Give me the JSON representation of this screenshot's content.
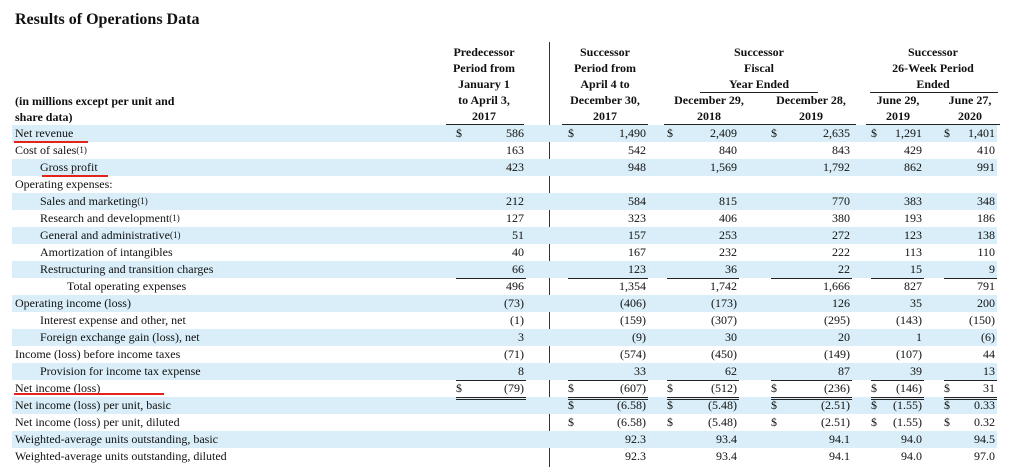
{
  "title": "Results of Operations Data",
  "unit_label": [
    "(in millions except per unit and",
    "share data)"
  ],
  "columns": [
    {
      "group": [
        "Predecessor",
        "Period from",
        "January 1",
        "to April 3,",
        "2017"
      ]
    },
    {
      "group": [
        "Successor",
        "Period from",
        "April 4 to",
        "December 30,",
        "2017"
      ]
    },
    {
      "group_top": [
        "Successor",
        "Fiscal",
        "Year Ended"
      ],
      "sub": [
        [
          "December 29,",
          "2018"
        ],
        [
          "December 28,",
          "2019"
        ]
      ]
    },
    {
      "group_top": [
        "Successor",
        "26-Week Period",
        "Ended"
      ],
      "sub": [
        [
          "June 29,",
          "2019"
        ],
        [
          "June 27,",
          "2020"
        ]
      ]
    }
  ],
  "rows": [
    {
      "label": "Net revenue",
      "indent": 0,
      "shade": true,
      "dollar": true,
      "values": [
        "586",
        "1,490",
        "2,409",
        "2,635",
        "1,291",
        "1,401"
      ]
    },
    {
      "label": "Cost of sales",
      "fn": "(1)",
      "indent": 0,
      "shade": false,
      "values": [
        "163",
        "542",
        "840",
        "843",
        "429",
        "410"
      ]
    },
    {
      "label": "Gross profit",
      "indent": 1,
      "shade": true,
      "values": [
        "423",
        "948",
        "1,569",
        "1,792",
        "862",
        "991"
      ]
    },
    {
      "label": "Operating expenses:",
      "indent": 0,
      "shade": false,
      "values": [
        "",
        "",
        "",
        "",
        "",
        ""
      ]
    },
    {
      "label": "Sales and marketing",
      "fn": "(1)",
      "indent": 1,
      "shade": true,
      "values": [
        "212",
        "584",
        "815",
        "770",
        "383",
        "348"
      ]
    },
    {
      "label": "Research and development",
      "fn": "(1)",
      "indent": 1,
      "shade": false,
      "values": [
        "127",
        "323",
        "406",
        "380",
        "193",
        "186"
      ]
    },
    {
      "label": "General and administrative",
      "fn": "(1)",
      "indent": 1,
      "shade": true,
      "values": [
        "51",
        "157",
        "253",
        "272",
        "123",
        "138"
      ]
    },
    {
      "label": "Amortization of intangibles",
      "indent": 1,
      "shade": false,
      "values": [
        "40",
        "167",
        "232",
        "222",
        "113",
        "110"
      ]
    },
    {
      "label": "Restructuring and transition charges",
      "indent": 1,
      "shade": true,
      "values": [
        "66",
        "123",
        "36",
        "22",
        "15",
        "9"
      ]
    },
    {
      "label": "Total operating expenses",
      "indent": 2,
      "shade": false,
      "values": [
        "496",
        "1,354",
        "1,742",
        "1,666",
        "827",
        "791"
      ]
    },
    {
      "label": "Operating income (loss)",
      "indent": 0,
      "shade": true,
      "values": [
        "(73)",
        "(406)",
        "(173)",
        "126",
        "35",
        "200"
      ]
    },
    {
      "label": "Interest expense and other, net",
      "indent": 1,
      "shade": false,
      "values": [
        "(1)",
        "(159)",
        "(307)",
        "(295)",
        "(143)",
        "(150)"
      ]
    },
    {
      "label": "Foreign exchange gain (loss), net",
      "indent": 1,
      "shade": true,
      "values": [
        "3",
        "(9)",
        "30",
        "20",
        "1",
        "(6)"
      ]
    },
    {
      "label": "Income (loss) before income taxes",
      "indent": 0,
      "shade": false,
      "values": [
        "(71)",
        "(574)",
        "(450)",
        "(149)",
        "(107)",
        "44"
      ]
    },
    {
      "label": "Provision for income tax expense",
      "indent": 1,
      "shade": true,
      "values": [
        "8",
        "33",
        "62",
        "87",
        "39",
        "13"
      ]
    },
    {
      "label": "Net income (loss)",
      "indent": 0,
      "shade": false,
      "dollar": true,
      "values": [
        "(79)",
        "(607)",
        "(512)",
        "(236)",
        "(146)",
        "31"
      ]
    },
    {
      "label": "Net income (loss) per unit, basic",
      "indent": 0,
      "shade": true,
      "dollar_from": 1,
      "values": [
        "",
        "(6.58)",
        "(5.48)",
        "(2.51)",
        "(1.55)",
        "0.33"
      ]
    },
    {
      "label": "Net income (loss) per unit, diluted",
      "indent": 0,
      "shade": false,
      "dollar_from": 1,
      "values": [
        "",
        "(6.58)",
        "(5.48)",
        "(2.51)",
        "(1.55)",
        "0.32"
      ]
    },
    {
      "label": "Weighted-average units outstanding, basic",
      "indent": 0,
      "shade": true,
      "values": [
        "",
        "92.3",
        "93.4",
        "94.1",
        "94.0",
        "94.5"
      ]
    },
    {
      "label": "Weighted-average units outstanding, diluted",
      "indent": 0,
      "shade": false,
      "values": [
        "",
        "92.3",
        "93.4",
        "94.1",
        "94.0",
        "97.0"
      ]
    }
  ],
  "currency_symbol": "$",
  "accent_color": "#e3241b",
  "shade_color": "#d9eef8"
}
